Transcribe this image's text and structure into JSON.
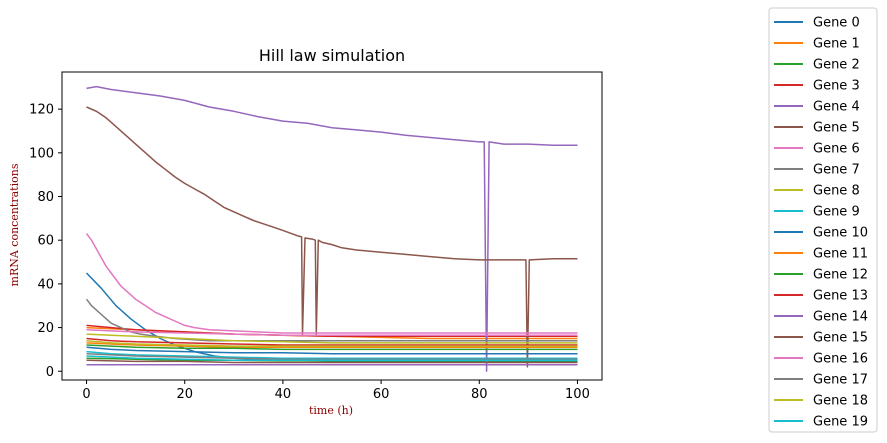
{
  "chart_data": {
    "type": "line",
    "title": "Hill law simulation",
    "xlabel": "time (h)",
    "ylabel": "mRNA concentrations",
    "xlim": [
      -5,
      105
    ],
    "ylim": [
      -4,
      137
    ],
    "xticks": [
      0,
      20,
      40,
      60,
      80,
      100
    ],
    "yticks": [
      0,
      20,
      40,
      60,
      80,
      100,
      120
    ],
    "grid": false,
    "legend_position": "outside-right",
    "series": [
      {
        "name": "Gene 0",
        "color": "#1f77b4",
        "points": [
          [
            0,
            45
          ],
          [
            3,
            38
          ],
          [
            6,
            30
          ],
          [
            9,
            24
          ],
          [
            12,
            19
          ],
          [
            15,
            15
          ],
          [
            18,
            12
          ],
          [
            22,
            9
          ],
          [
            26,
            7
          ],
          [
            30,
            6
          ],
          [
            40,
            5
          ],
          [
            50,
            4.5
          ],
          [
            60,
            4.5
          ],
          [
            70,
            4.5
          ],
          [
            80,
            4.5
          ],
          [
            90,
            4.5
          ],
          [
            100,
            4.5
          ]
        ]
      },
      {
        "name": "Gene 1",
        "color": "#ff7f0e",
        "points": [
          [
            0,
            20
          ],
          [
            5,
            19.5
          ],
          [
            10,
            19
          ],
          [
            20,
            18
          ],
          [
            30,
            17
          ],
          [
            40,
            16.5
          ],
          [
            50,
            16
          ],
          [
            60,
            15.5
          ],
          [
            70,
            15
          ],
          [
            80,
            15
          ],
          [
            90,
            15
          ],
          [
            100,
            15
          ]
        ]
      },
      {
        "name": "Gene 2",
        "color": "#2ca02c",
        "points": [
          [
            0,
            6
          ],
          [
            10,
            5.5
          ],
          [
            20,
            5
          ],
          [
            30,
            5
          ],
          [
            40,
            4.8
          ],
          [
            50,
            4.8
          ],
          [
            60,
            4.8
          ],
          [
            70,
            4.8
          ],
          [
            80,
            4.8
          ],
          [
            90,
            4.8
          ],
          [
            100,
            4.8
          ]
        ]
      },
      {
        "name": "Gene 3",
        "color": "#d62728",
        "points": [
          [
            0,
            21
          ],
          [
            5,
            20
          ],
          [
            10,
            19
          ],
          [
            20,
            18
          ],
          [
            30,
            17
          ],
          [
            40,
            16.5
          ],
          [
            50,
            16
          ],
          [
            60,
            16
          ],
          [
            70,
            16
          ],
          [
            80,
            16
          ],
          [
            90,
            16
          ],
          [
            100,
            16
          ]
        ]
      },
      {
        "name": "Gene 4",
        "color": "#9467bd",
        "points": [
          [
            0,
            129.5
          ],
          [
            2,
            130.3
          ],
          [
            5,
            129
          ],
          [
            10,
            127.5
          ],
          [
            15,
            126
          ],
          [
            20,
            124
          ],
          [
            25,
            121
          ],
          [
            30,
            119
          ],
          [
            35,
            116.5
          ],
          [
            40,
            114.5
          ],
          [
            45,
            113.5
          ],
          [
            50,
            111.5
          ],
          [
            55,
            110.5
          ],
          [
            60,
            109.5
          ],
          [
            65,
            108
          ],
          [
            70,
            107
          ],
          [
            75,
            106
          ],
          [
            80,
            105
          ],
          [
            81,
            105
          ],
          [
            81.5,
            0
          ],
          [
            82,
            105
          ],
          [
            85,
            104
          ],
          [
            90,
            104
          ],
          [
            95,
            103.5
          ],
          [
            100,
            103.5
          ]
        ]
      },
      {
        "name": "Gene 5",
        "color": "#8c564b",
        "points": [
          [
            0,
            121
          ],
          [
            2,
            119
          ],
          [
            4,
            116
          ],
          [
            6,
            112
          ],
          [
            8,
            108
          ],
          [
            10,
            104
          ],
          [
            12,
            100
          ],
          [
            14,
            96
          ],
          [
            16,
            92.5
          ],
          [
            18,
            89
          ],
          [
            20,
            86
          ],
          [
            22,
            83.5
          ],
          [
            24,
            81
          ],
          [
            26,
            78
          ],
          [
            28,
            75
          ],
          [
            30,
            73
          ],
          [
            32,
            71
          ],
          [
            34,
            69
          ],
          [
            36,
            67.5
          ],
          [
            38,
            66
          ],
          [
            40,
            64.5
          ],
          [
            43,
            62
          ],
          [
            43.8,
            61.5
          ],
          [
            44,
            17
          ],
          [
            44.5,
            61
          ],
          [
            46,
            60.5
          ],
          [
            46.6,
            60
          ],
          [
            46.8,
            17
          ],
          [
            47.2,
            60
          ],
          [
            48,
            59
          ],
          [
            50,
            58
          ],
          [
            52,
            56.5
          ],
          [
            55,
            55.5
          ],
          [
            60,
            54.5
          ],
          [
            65,
            53.5
          ],
          [
            70,
            52.5
          ],
          [
            75,
            51.5
          ],
          [
            80,
            51
          ],
          [
            85,
            51
          ],
          [
            89.5,
            51
          ],
          [
            89.8,
            2
          ],
          [
            90.2,
            51
          ],
          [
            95,
            51.5
          ],
          [
            100,
            51.5
          ]
        ]
      },
      {
        "name": "Gene 6",
        "color": "#e377c2",
        "points": [
          [
            0,
            63
          ],
          [
            1,
            60
          ],
          [
            2,
            56
          ],
          [
            3,
            52
          ],
          [
            4,
            48
          ],
          [
            5,
            45
          ],
          [
            6,
            42
          ],
          [
            7,
            39
          ],
          [
            8,
            37
          ],
          [
            9,
            35
          ],
          [
            10,
            33
          ],
          [
            12,
            30
          ],
          [
            14,
            27
          ],
          [
            16,
            25
          ],
          [
            18,
            23
          ],
          [
            20,
            21
          ],
          [
            22,
            20
          ],
          [
            25,
            19
          ],
          [
            30,
            18.5
          ],
          [
            40,
            17.5
          ],
          [
            50,
            17.5
          ],
          [
            60,
            17.5
          ],
          [
            70,
            17.5
          ],
          [
            80,
            17.5
          ],
          [
            90,
            17.5
          ],
          [
            100,
            17.5
          ]
        ]
      },
      {
        "name": "Gene 7",
        "color": "#7f7f7f",
        "points": [
          [
            0,
            33
          ],
          [
            1,
            30
          ],
          [
            2,
            28
          ],
          [
            3,
            26
          ],
          [
            4,
            24
          ],
          [
            5,
            22
          ],
          [
            7,
            20
          ],
          [
            9,
            18
          ],
          [
            11,
            17
          ],
          [
            14,
            16
          ],
          [
            18,
            15
          ],
          [
            25,
            14
          ],
          [
            30,
            14
          ],
          [
            40,
            14
          ],
          [
            50,
            14
          ],
          [
            60,
            14
          ],
          [
            70,
            14
          ],
          [
            80,
            14
          ],
          [
            90,
            14
          ],
          [
            100,
            14
          ]
        ]
      },
      {
        "name": "Gene 8",
        "color": "#bcbd22",
        "points": [
          [
            0,
            17
          ],
          [
            5,
            16.5
          ],
          [
            10,
            16
          ],
          [
            20,
            15
          ],
          [
            30,
            14
          ],
          [
            40,
            13.5
          ],
          [
            50,
            13
          ],
          [
            60,
            13
          ],
          [
            70,
            13
          ],
          [
            80,
            13
          ],
          [
            90,
            13
          ],
          [
            100,
            13
          ]
        ]
      },
      {
        "name": "Gene 9",
        "color": "#17becf",
        "points": [
          [
            0,
            9
          ],
          [
            5,
            8
          ],
          [
            10,
            7.5
          ],
          [
            20,
            7
          ],
          [
            30,
            6.5
          ],
          [
            40,
            6
          ],
          [
            50,
            6
          ],
          [
            60,
            6
          ],
          [
            70,
            6
          ],
          [
            80,
            6
          ],
          [
            90,
            6
          ],
          [
            100,
            6
          ]
        ]
      },
      {
        "name": "Gene 10",
        "color": "#1f77b4",
        "points": [
          [
            0,
            11
          ],
          [
            5,
            10
          ],
          [
            10,
            9.5
          ],
          [
            20,
            9
          ],
          [
            30,
            8.5
          ],
          [
            40,
            8.5
          ],
          [
            50,
            8
          ],
          [
            60,
            8
          ],
          [
            70,
            8
          ],
          [
            80,
            8
          ],
          [
            90,
            8
          ],
          [
            100,
            8
          ]
        ]
      },
      {
        "name": "Gene 11",
        "color": "#ff7f0e",
        "points": [
          [
            0,
            13
          ],
          [
            5,
            12.5
          ],
          [
            10,
            12
          ],
          [
            20,
            11.5
          ],
          [
            30,
            11
          ],
          [
            40,
            11
          ],
          [
            50,
            11
          ],
          [
            60,
            11
          ],
          [
            70,
            11
          ],
          [
            80,
            11
          ],
          [
            90,
            11
          ],
          [
            100,
            11
          ]
        ]
      },
      {
        "name": "Gene 12",
        "color": "#2ca02c",
        "points": [
          [
            0,
            12
          ],
          [
            5,
            11.5
          ],
          [
            10,
            11
          ],
          [
            20,
            10.5
          ],
          [
            30,
            10.5
          ],
          [
            40,
            10
          ],
          [
            50,
            10
          ],
          [
            60,
            10
          ],
          [
            70,
            10
          ],
          [
            80,
            10
          ],
          [
            90,
            10
          ],
          [
            100,
            10
          ]
        ]
      },
      {
        "name": "Gene 13",
        "color": "#d62728",
        "points": [
          [
            0,
            15
          ],
          [
            5,
            14
          ],
          [
            10,
            13.5
          ],
          [
            20,
            13
          ],
          [
            30,
            12.5
          ],
          [
            40,
            12
          ],
          [
            50,
            12
          ],
          [
            60,
            12
          ],
          [
            70,
            12
          ],
          [
            80,
            12
          ],
          [
            90,
            12
          ],
          [
            100,
            12
          ]
        ]
      },
      {
        "name": "Gene 14",
        "color": "#9467bd",
        "points": [
          [
            0,
            3
          ],
          [
            10,
            3
          ],
          [
            20,
            3
          ],
          [
            30,
            3
          ],
          [
            40,
            3
          ],
          [
            50,
            3
          ],
          [
            60,
            3
          ],
          [
            70,
            3
          ],
          [
            80,
            3
          ],
          [
            90,
            3
          ],
          [
            100,
            3
          ]
        ]
      },
      {
        "name": "Gene 15",
        "color": "#8c564b",
        "points": [
          [
            0,
            5
          ],
          [
            10,
            4.5
          ],
          [
            20,
            4.5
          ],
          [
            30,
            4
          ],
          [
            40,
            4
          ],
          [
            50,
            4
          ],
          [
            60,
            4
          ],
          [
            70,
            4
          ],
          [
            80,
            4
          ],
          [
            90,
            4
          ],
          [
            100,
            4
          ]
        ]
      },
      {
        "name": "Gene 16",
        "color": "#e377c2",
        "points": [
          [
            0,
            19
          ],
          [
            5,
            18.5
          ],
          [
            10,
            18
          ],
          [
            20,
            17.5
          ],
          [
            30,
            17
          ],
          [
            40,
            16.5
          ],
          [
            50,
            16.5
          ],
          [
            60,
            16.5
          ],
          [
            70,
            16.5
          ],
          [
            80,
            16.5
          ],
          [
            90,
            16.5
          ],
          [
            100,
            16.5
          ]
        ]
      },
      {
        "name": "Gene 17",
        "color": "#7f7f7f",
        "points": [
          [
            0,
            8
          ],
          [
            10,
            7
          ],
          [
            20,
            6.5
          ],
          [
            30,
            6
          ],
          [
            40,
            5.5
          ],
          [
            50,
            5.5
          ],
          [
            60,
            5.5
          ],
          [
            70,
            5.5
          ],
          [
            80,
            5.5
          ],
          [
            90,
            5.5
          ],
          [
            100,
            5.5
          ]
        ]
      },
      {
        "name": "Gene 18",
        "color": "#bcbd22",
        "points": [
          [
            0,
            14
          ],
          [
            5,
            13
          ],
          [
            10,
            12.5
          ],
          [
            20,
            12
          ],
          [
            30,
            11.5
          ],
          [
            40,
            11.5
          ],
          [
            50,
            11.5
          ],
          [
            60,
            11.5
          ],
          [
            70,
            11.5
          ],
          [
            80,
            11.5
          ],
          [
            90,
            11.5
          ],
          [
            100,
            11.5
          ]
        ]
      },
      {
        "name": "Gene 19",
        "color": "#17becf",
        "points": [
          [
            0,
            7
          ],
          [
            10,
            6
          ],
          [
            20,
            5.5
          ],
          [
            30,
            5
          ],
          [
            40,
            5
          ],
          [
            50,
            5
          ],
          [
            60,
            5
          ],
          [
            70,
            5
          ],
          [
            80,
            5
          ],
          [
            90,
            5
          ],
          [
            100,
            5
          ]
        ]
      }
    ]
  }
}
